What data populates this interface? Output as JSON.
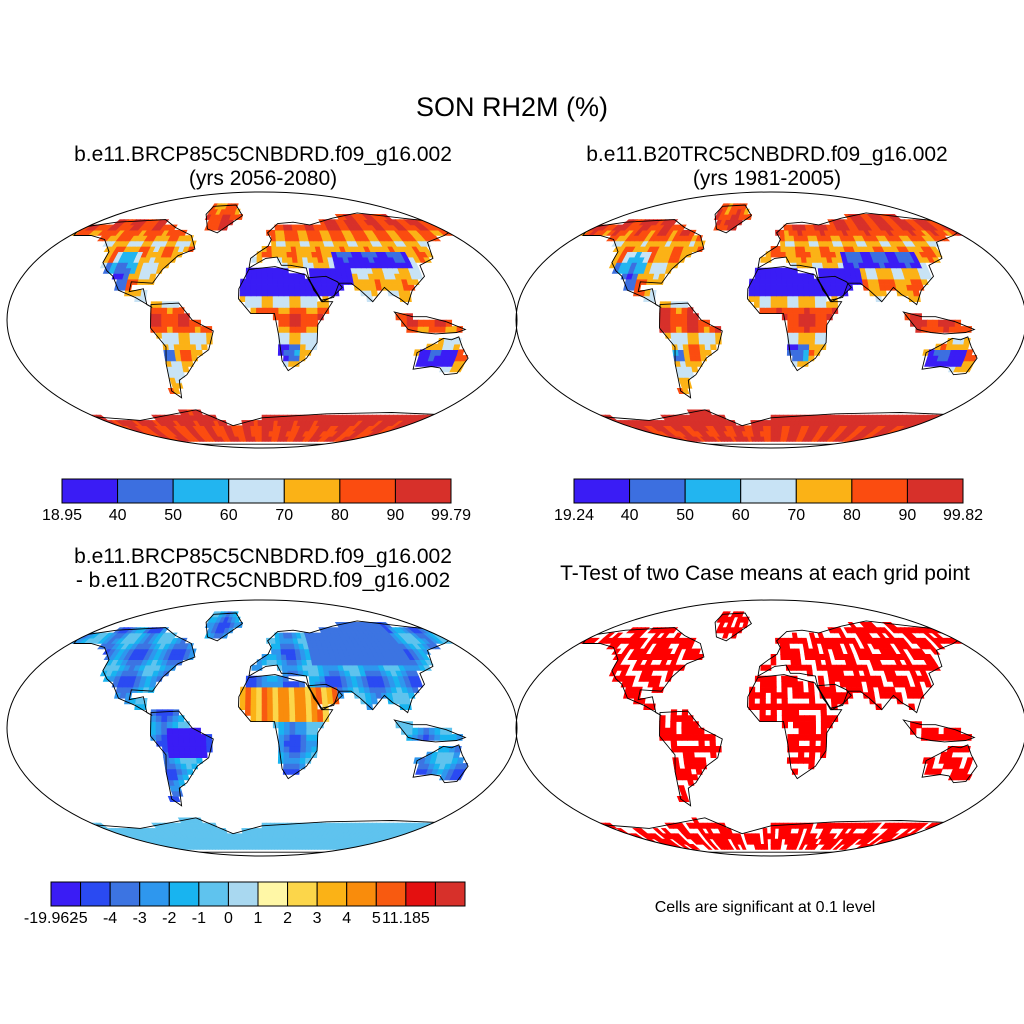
{
  "title": "SON RH2M (%)",
  "panels": [
    {
      "id": "panel-1",
      "title_line1": "b.e11.BRCP85C5CNBDRD.f09_g16.002",
      "title_line2": "(yrs 2056-2080)",
      "field": "future",
      "colorbar": {
        "colors": [
          "#3a1cf5",
          "#3c6fe0",
          "#22b5f0",
          "#c8e3f5",
          "#fbb216",
          "#fb4c10",
          "#d7302a"
        ],
        "labels": [
          "18.95",
          "40",
          "50",
          "60",
          "70",
          "80",
          "90",
          "99.79"
        ]
      }
    },
    {
      "id": "panel-2",
      "title_line1": "b.e11.B20TRC5CNBDRD.f09_g16.002",
      "title_line2": "(yrs 1981-2005)",
      "field": "historical",
      "colorbar": {
        "colors": [
          "#3a1cf5",
          "#3c6fe0",
          "#22b5f0",
          "#c8e3f5",
          "#fbb216",
          "#fb4c10",
          "#d7302a"
        ],
        "labels": [
          "19.24",
          "40",
          "50",
          "60",
          "70",
          "80",
          "90",
          "99.82"
        ]
      }
    },
    {
      "id": "panel-3",
      "title_line1": "b.e11.BRCP85C5CNBDRD.f09_g16.002",
      "title_line2": "- b.e11.B20TRC5CNBDRD.f09_g16.002",
      "field": "difference",
      "colorbar": {
        "colors": [
          "#3a1cf5",
          "#2a4af2",
          "#3c74e2",
          "#2e97ee",
          "#18b4f0",
          "#5fc3ee",
          "#a9d8f0",
          "#fff7a6",
          "#fcd64a",
          "#fbb216",
          "#f98c0c",
          "#f85a10",
          "#e41010",
          "#d7302a"
        ],
        "labels": [
          "-19.962",
          "-5",
          "-4",
          "-3",
          "-2",
          "-1",
          "0",
          "1",
          "2",
          "3",
          "4",
          "5",
          "11.185"
        ]
      }
    },
    {
      "id": "panel-4",
      "title_line1": "T-Test of two Case means at each grid point",
      "title_line2": "",
      "field": "significance",
      "note": "Cells are significant at 0.1 level",
      "significance_color": "#ff0000"
    }
  ]
}
